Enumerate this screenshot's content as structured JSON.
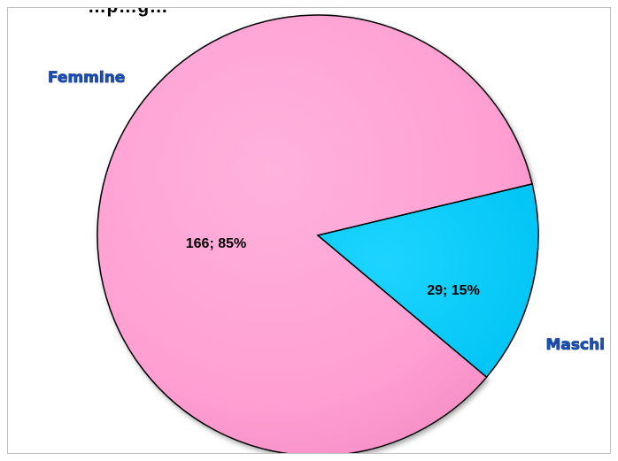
{
  "chart_data": {
    "type": "pie",
    "title": "…p…g…",
    "categories": [
      "Femmine",
      "Maschi"
    ],
    "values": [
      166,
      29
    ],
    "percentages": [
      "85%",
      "15%"
    ],
    "data_labels": [
      "166; 85%",
      "29; 15%"
    ],
    "colors": [
      "#ffa0d3",
      "#00ccff"
    ],
    "legend": "none"
  }
}
